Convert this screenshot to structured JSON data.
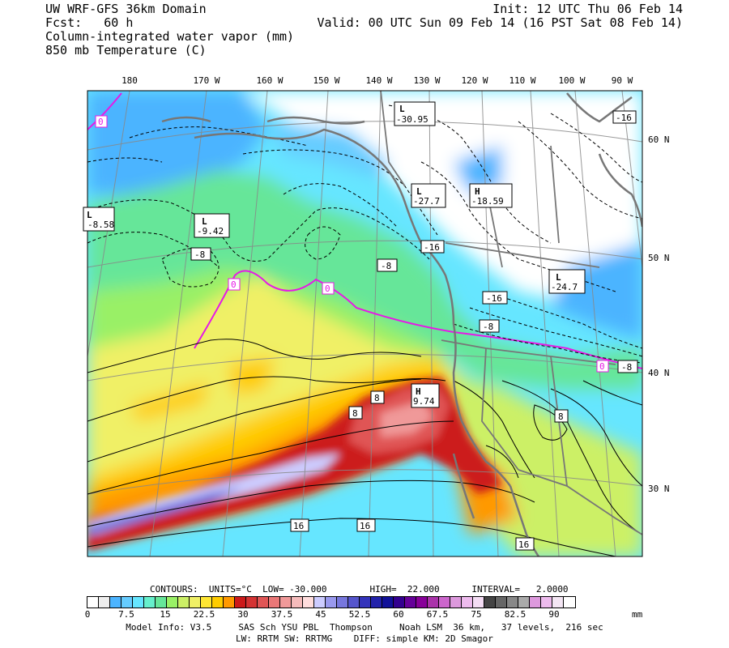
{
  "header": {
    "model_title": "UW WRF-GFS 36km Domain",
    "forecast": "Fcst:   60 h",
    "field_1": "Column-integrated water vapor (mm)",
    "field_2": "850 mb Temperature (C)",
    "init": "Init: 12 UTC Thu 06 Feb 14",
    "valid": "Valid: 00 UTC Sun 09 Feb 14 (16 PST Sat 08 Feb 14)"
  },
  "map": {
    "longitude_labels": [
      "180",
      "170 W",
      "160 W",
      "150 W",
      "140 W",
      "130 W",
      "120 W",
      "110 W",
      "100 W",
      "90 W"
    ],
    "latitude_labels": [
      "60 N",
      "50 N",
      "40 N",
      "30 N"
    ],
    "pressure_centers": [
      {
        "type": "L",
        "value": "-30.95"
      },
      {
        "type": "L",
        "value": "-27.7"
      },
      {
        "type": "H",
        "value": "-18.59"
      },
      {
        "type": "L",
        "value": "-24.7"
      },
      {
        "type": "L",
        "value": "-9.42"
      },
      {
        "type": "L",
        "value": "-8.58"
      },
      {
        "type": "H",
        "value": "9.74"
      }
    ],
    "contour_labels": [
      "0",
      "0",
      "0",
      "0",
      "-8",
      "-8",
      "-16",
      "-16",
      "-8",
      "-16",
      "-8",
      "8",
      "8",
      "8",
      "16",
      "16",
      "16"
    ]
  },
  "legend": {
    "contours": "CONTOURS:  UNITS=°C  LOW= -30.000        HIGH=  22.000      INTERVAL=   2.0000",
    "units": "mm",
    "tick_labels": [
      "0",
      "7.5",
      "15",
      "22.5",
      "30",
      "37.5",
      "45",
      "52.5",
      "60",
      "67.5",
      "75",
      "82.5",
      "90"
    ],
    "colors": [
      "#ffffff",
      "#eeeeee",
      "#4cb4ff",
      "#66ccff",
      "#66e6ff",
      "#66f0cc",
      "#66e699",
      "#99f066",
      "#ccf066",
      "#f0f066",
      "#ffe633",
      "#ffcc00",
      "#ff9900",
      "#cc1a1a",
      "#d43333",
      "#e05555",
      "#ea7777",
      "#f09999",
      "#f5bbbb",
      "#ffdddd",
      "#ccccff",
      "#9999ee",
      "#7777dd",
      "#5555cc",
      "#3333bb",
      "#2222aa",
      "#111199",
      "#33008f",
      "#660099",
      "#880099",
      "#aa33aa",
      "#cc66cc",
      "#dd99dd",
      "#eebbee",
      "#f4dcf4",
      "#444444",
      "#666666",
      "#888888",
      "#aaaaaa",
      "#dd99dd",
      "#eebbee",
      "#f4e6f4",
      "#ffffff"
    ]
  },
  "model_info": {
    "line_1": "Model Info: V3.5     SAS Sch YSU PBL  Thompson     Noah LSM  36 km,   37 levels,  216 sec",
    "line_2": "LW: RRTM SW: RRTMG    DIFF: simple KM: 2D Smagor"
  }
}
